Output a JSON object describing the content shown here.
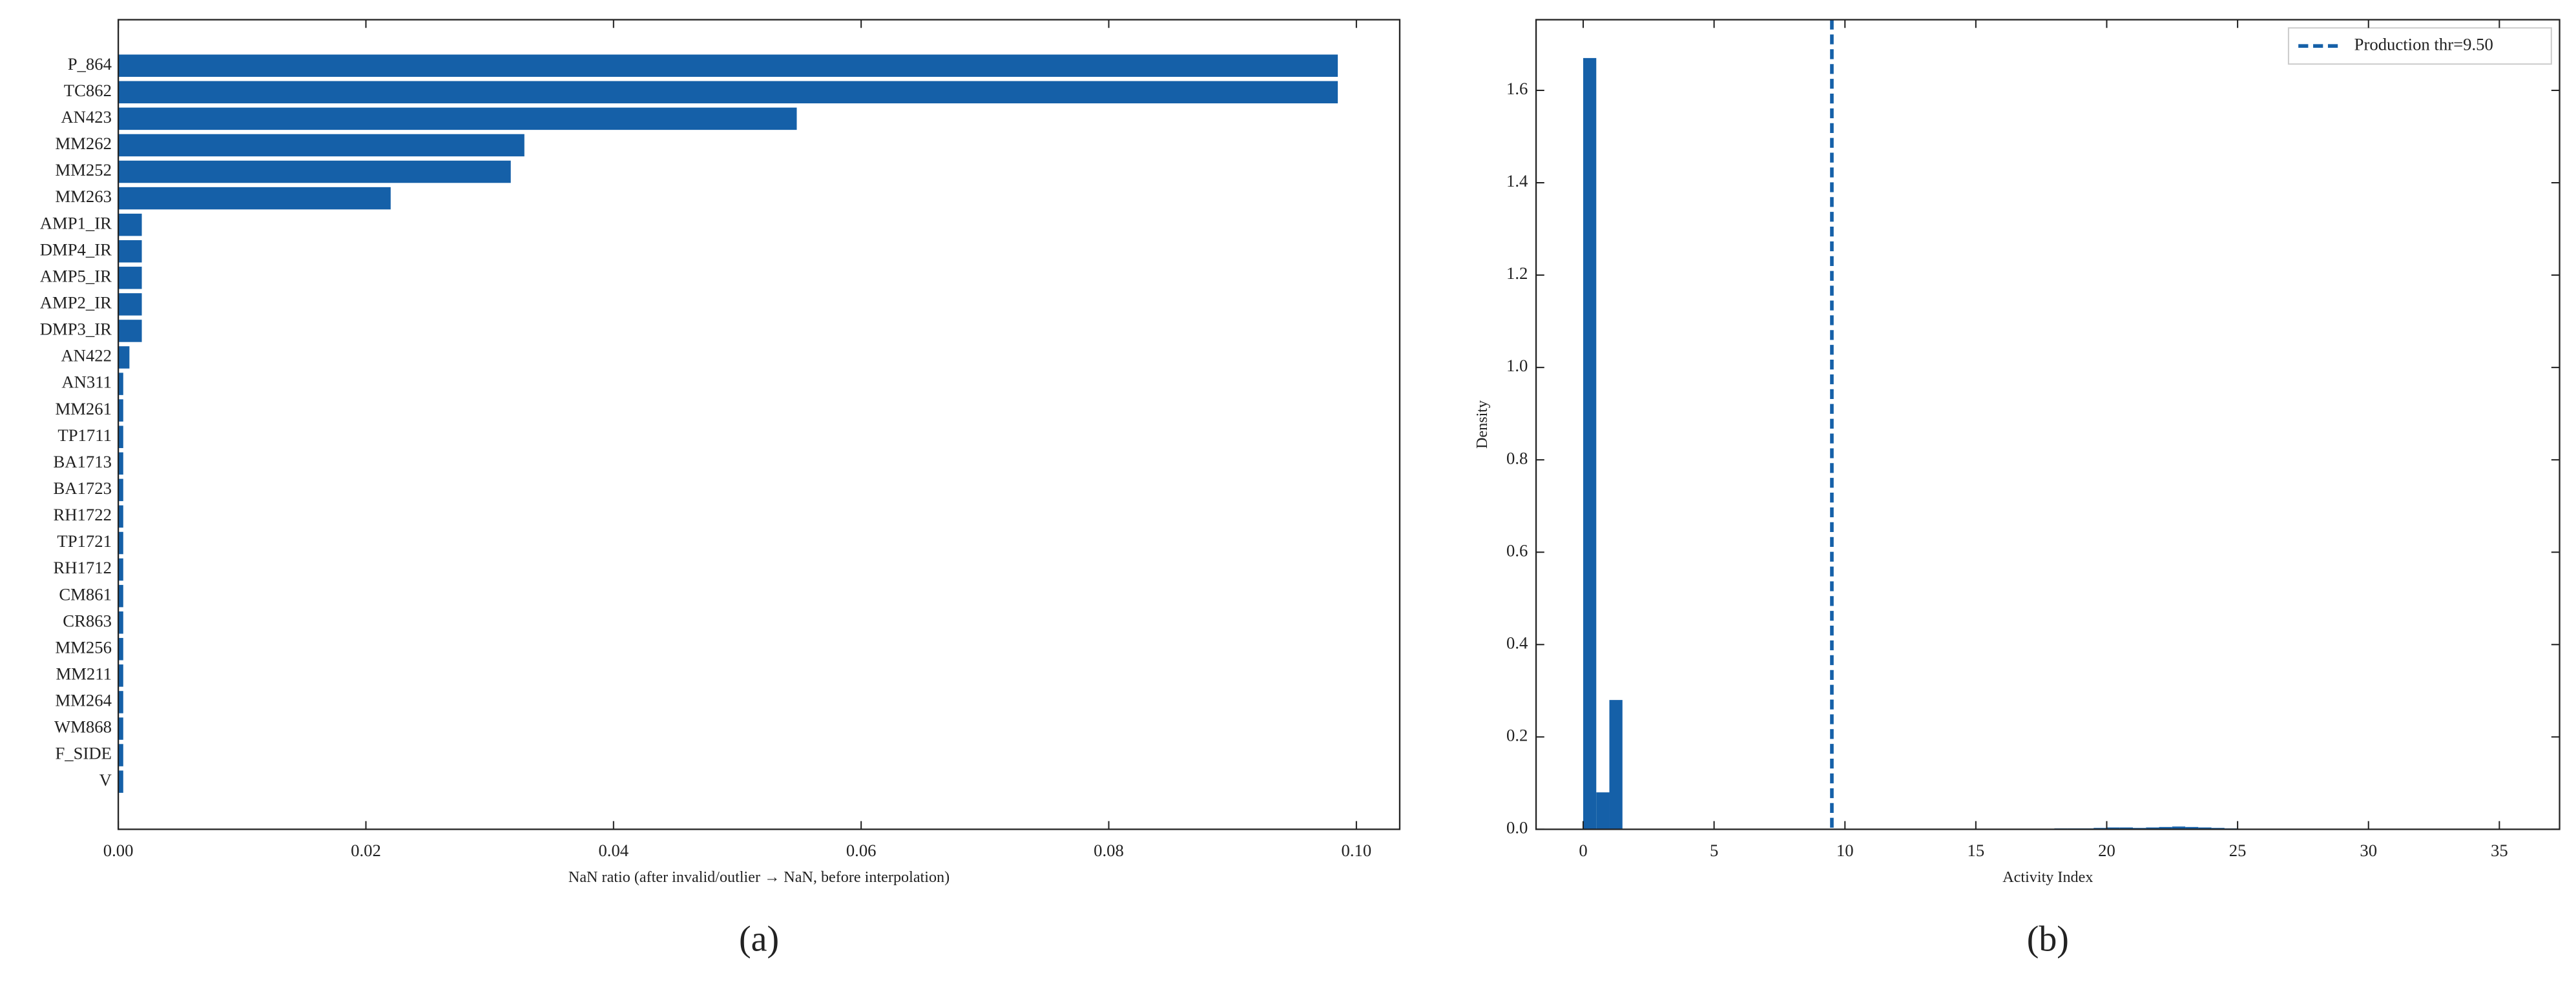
{
  "chart_data": [
    {
      "type": "bar",
      "orientation": "horizontal",
      "caption": "(a)",
      "x_label": "NaN ratio (after invalid/outlier → NaN, before interpolation)",
      "categories": [
        "P_864",
        "TC862",
        "AN423",
        "MM262",
        "MM252",
        "MM263",
        "AMP1_IR",
        "DMP4_IR",
        "AMP5_IR",
        "AMP2_IR",
        "DMP3_IR",
        "AN422",
        "AN311",
        "MM261",
        "TP1711",
        "BA1713",
        "BA1723",
        "RH1722",
        "TP1721",
        "RH1712",
        "CM861",
        "CR863",
        "MM256",
        "MM211",
        "MM264",
        "WM868",
        "F_SIDE",
        "V"
      ],
      "values": [
        0.0985,
        0.0985,
        0.0548,
        0.0328,
        0.0317,
        0.022,
        0.0019,
        0.0019,
        0.0019,
        0.0019,
        0.0019,
        0.0009,
        0.0004,
        0.0004,
        0.0004,
        0.0004,
        0.0004,
        0.0004,
        0.0004,
        0.0004,
        0.0004,
        0.0004,
        0.0004,
        0.0004,
        0.0004,
        0.0004,
        0.0004,
        0.0004
      ],
      "color": "#1560a8",
      "xlim": [
        0,
        0.1035
      ],
      "xticks": [
        {
          "value": 0,
          "label": "0.00"
        },
        {
          "value": 0.02,
          "label": "0.02"
        },
        {
          "value": 0.04,
          "label": "0.04"
        },
        {
          "value": 0.06,
          "label": "0.06"
        },
        {
          "value": 0.08,
          "label": "0.08"
        },
        {
          "value": 0.1,
          "label": "0.10"
        }
      ]
    },
    {
      "type": "histogram",
      "caption": "(b)",
      "x_label": "Activity Index",
      "y_label": "Density",
      "bins": [
        0,
        0.5,
        1,
        1.5,
        2,
        2.5,
        3,
        3.5,
        4,
        4.5,
        5,
        5.5,
        6,
        6.5,
        7,
        7.5,
        8,
        8.5,
        9,
        9.5,
        10,
        10.5,
        11,
        11.5,
        12,
        12.5,
        13,
        13.5,
        14,
        14.5,
        15,
        15.5,
        16,
        16.5,
        17,
        17.5,
        18,
        18.5,
        19,
        19.5,
        20,
        20.5,
        21,
        21.5,
        22,
        22.5,
        23,
        23.5,
        24,
        24.5,
        25,
        25.5,
        26,
        26.5,
        27,
        27.5,
        28,
        28.5,
        29,
        29.5,
        30,
        30.5,
        31,
        31.5,
        32,
        32.5,
        33,
        33.5,
        34,
        34.5,
        35
      ],
      "values": [
        1.67,
        0.08,
        0.28,
        0,
        0,
        0,
        0,
        0,
        0,
        0,
        0,
        0,
        0,
        0,
        0,
        0,
        0,
        0,
        0,
        0,
        0,
        0,
        0,
        0,
        0,
        0,
        0,
        0,
        0,
        0,
        0,
        0,
        0,
        0,
        0.001,
        0.001,
        0.002,
        0.002,
        0.002,
        0.003,
        0.004,
        0.004,
        0.003,
        0.004,
        0.005,
        0.006,
        0.005,
        0.004,
        0.003,
        0.002,
        0.001,
        0,
        0,
        0,
        0,
        0,
        0,
        0,
        0,
        0,
        0,
        0,
        0,
        0,
        0,
        0,
        0,
        0,
        0,
        0
      ],
      "color": "#1560a8",
      "lines": [
        {
          "name": "Production thr=9.50",
          "x": 9.5,
          "color": "#1560a8",
          "style": "dashed"
        }
      ],
      "legend": "upper right",
      "xlim": [
        -1.8,
        37.3
      ],
      "xticks": [
        0,
        5,
        10,
        15,
        20,
        25,
        30,
        35
      ],
      "ylim": [
        0,
        1.753
      ],
      "yticks": [
        {
          "value": 0,
          "label": "0.0"
        },
        {
          "value": 0.2,
          "label": "0.2"
        },
        {
          "value": 0.4,
          "label": "0.4"
        },
        {
          "value": 0.6,
          "label": "0.6"
        },
        {
          "value": 0.8,
          "label": "0.8"
        },
        {
          "value": 1,
          "label": "1.0"
        },
        {
          "value": 1.2,
          "label": "1.2"
        },
        {
          "value": 1.4,
          "label": "1.4"
        },
        {
          "value": 1.6,
          "label": "1.6"
        }
      ]
    }
  ]
}
